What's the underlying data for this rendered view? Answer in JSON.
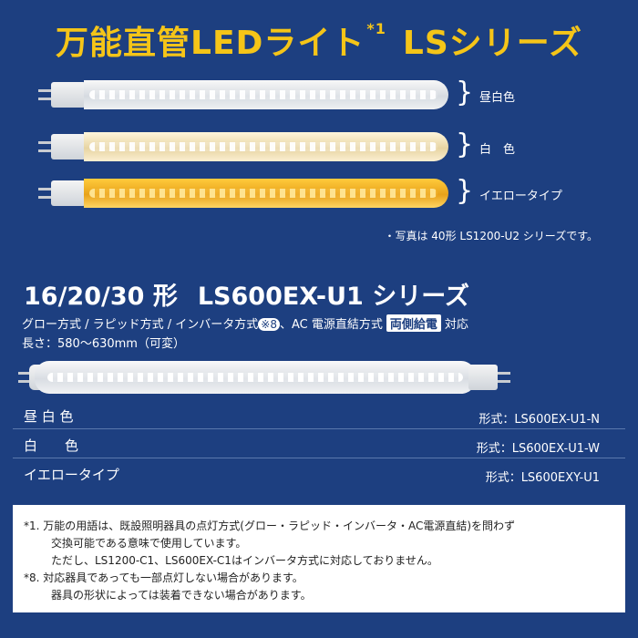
{
  "title": {
    "main": "万能直管LEDライト",
    "sup": "*1",
    "series": "LSシリーズ"
  },
  "tubes": [
    {
      "label": "昼白色"
    },
    {
      "label": "白　色"
    },
    {
      "label": "イエロータイプ"
    }
  ],
  "photo_note": "・写真は 40形 LS1200-U2 シリーズです。",
  "section2": {
    "title_a": "16/20/30 形",
    "title_b": "LS600EX-U1 シリーズ",
    "methods_a": "グロー方式 / ラピッド方式 / インバータ方式",
    "methods_note": "※8",
    "methods_b": "、AC 電源直結方式",
    "badge": "両側給電",
    "methods_c": "対応",
    "length": "長さ：580～630mm（可変）"
  },
  "models": [
    {
      "name": "昼 白 色",
      "code": "形式：LS600EX-U1-N"
    },
    {
      "name": "白　　色",
      "code": "形式：LS600EX-U1-W"
    },
    {
      "name": "イエロータイプ",
      "code": "形式：LS600EXY-U1"
    }
  ],
  "notes": [
    "*1. 万能の用語は、既設照明器具の点灯方式(グロー・ラピッド・インバータ・AC電源直結)を問わず",
    "交換可能である意味で使用しています。",
    "ただし、LS1200-C1、LS600EX-C1はインバータ方式に対応しておりません。",
    "*8. 対応器具であっても一部点灯しない場合があります。",
    "器具の形状によっては装着できない場合があります。"
  ]
}
